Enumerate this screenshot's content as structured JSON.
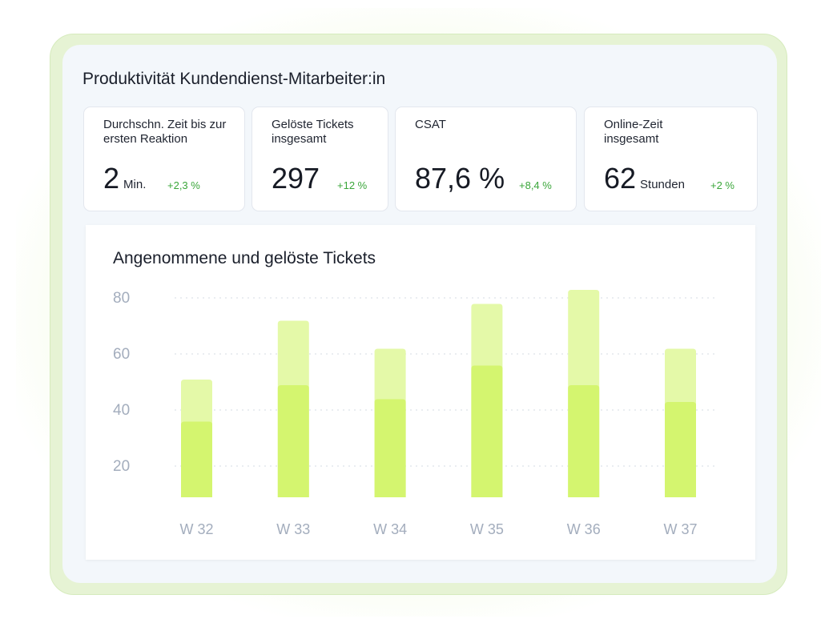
{
  "panel": {
    "title": "Produktivität Kundendienst-Mitarbeiter:in"
  },
  "kpis": [
    {
      "label": "Durchschn. Zeit bis zur ersten Reaktion",
      "value": "2",
      "unit": "Min.",
      "delta": "+2,3 %"
    },
    {
      "label": "Gelöste Tickets insgesamt",
      "value": "297",
      "unit": "",
      "delta": "+12 %"
    },
    {
      "label": "CSAT",
      "value": "87,6 %",
      "unit": "",
      "delta": "+8,4 %"
    },
    {
      "label": "Online-Zeit insgesamt",
      "value": "62",
      "unit": "Stunden",
      "delta": "+2 %"
    }
  ],
  "colors": {
    "accepted_bar": "#e4f9a8",
    "solved_bar": "#d4f56f",
    "positive_delta": "#3aa63a",
    "axis_text": "#a3adbd",
    "frame": "#e6f3d4"
  },
  "chart_data": {
    "type": "bar",
    "title": "Angenommene und gelöste Tickets",
    "categories": [
      "W 32",
      "W 33",
      "W 34",
      "W 35",
      "W 36",
      "W 37"
    ],
    "series": [
      {
        "values": [
          52,
          73,
          63,
          79,
          84,
          63
        ]
      },
      {
        "values": [
          37,
          50,
          45,
          57,
          50,
          44
        ]
      }
    ],
    "y_ticks": [
      20,
      40,
      60,
      80
    ],
    "ylim": [
      10,
      85
    ],
    "grid": true,
    "legend": "none"
  }
}
